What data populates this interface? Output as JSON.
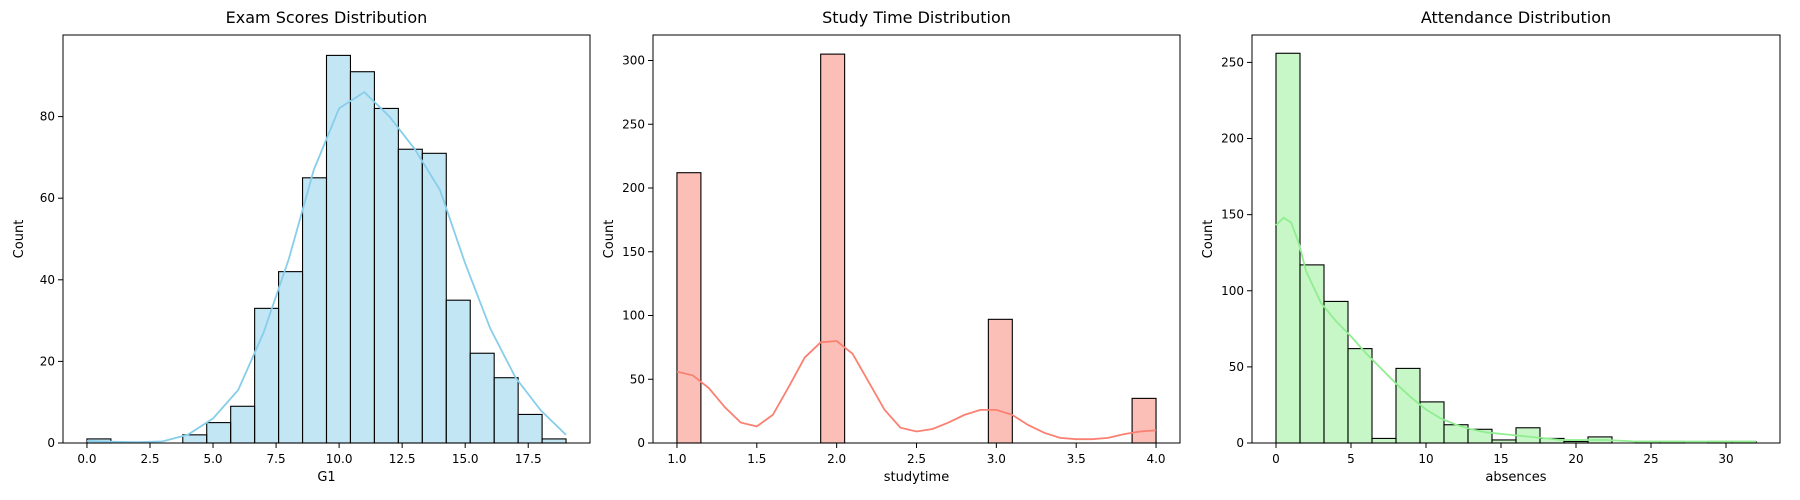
{
  "chart_data": [
    {
      "type": "histogram",
      "title": "Exam Scores Distribution",
      "xlabel": "G1",
      "ylabel": "Count",
      "xlim": [
        -0.95,
        19.95
      ],
      "ylim": [
        0,
        100
      ],
      "xticks": [
        0.0,
        2.5,
        5.0,
        7.5,
        10.0,
        12.5,
        15.0,
        17.5
      ],
      "xtick_labels": [
        "0.0",
        "2.5",
        "5.0",
        "7.5",
        "10.0",
        "12.5",
        "15.0",
        "17.5"
      ],
      "yticks": [
        0,
        20,
        40,
        60,
        80
      ],
      "ytick_labels": [
        "0",
        "20",
        "40",
        "60",
        "80"
      ],
      "bin_edges": [
        0,
        0.95,
        1.9,
        2.85,
        3.8,
        4.75,
        5.7,
        6.65,
        7.6,
        8.55,
        9.5,
        10.45,
        11.4,
        12.35,
        13.3,
        14.25,
        15.2,
        16.15,
        17.1,
        18.05,
        19.0
      ],
      "counts": [
        1,
        0,
        0,
        0,
        2,
        5,
        9,
        33,
        42,
        65,
        95,
        91,
        82,
        72,
        71,
        35,
        22,
        16,
        7,
        1
      ],
      "bar_color": "#87CEEB",
      "kde_color": "#87CEEB",
      "kde": {
        "x": [
          0,
          1,
          2,
          3,
          4,
          5,
          6,
          7,
          8,
          9,
          10,
          11,
          12,
          13,
          14,
          15,
          16,
          17,
          18,
          19
        ],
        "y": [
          0.5,
          0.3,
          0.2,
          0.4,
          2,
          6,
          13,
          27,
          45,
          67,
          82,
          86,
          80,
          72,
          62,
          44,
          28,
          16,
          8,
          2
        ]
      },
      "grid": false,
      "legend": "none"
    },
    {
      "type": "histogram",
      "title": "Study Time Distribution",
      "xlabel": "studytime",
      "ylabel": "Count",
      "xlim": [
        0.85,
        4.15
      ],
      "ylim": [
        0,
        320
      ],
      "xticks": [
        1.0,
        1.5,
        2.0,
        2.5,
        3.0,
        3.5,
        4.0
      ],
      "xtick_labels": [
        "1.0",
        "1.5",
        "2.0",
        "2.5",
        "3.0",
        "3.5",
        "4.0"
      ],
      "yticks": [
        0,
        50,
        100,
        150,
        200,
        250,
        300
      ],
      "ytick_labels": [
        "0",
        "50",
        "100",
        "150",
        "200",
        "250",
        "300"
      ],
      "bin_edges": [
        1.0,
        1.15,
        1.3,
        1.45,
        1.6,
        1.75,
        1.9,
        2.05,
        2.2,
        2.35,
        2.5,
        2.65,
        2.8,
        2.95,
        3.1,
        3.25,
        3.4,
        3.55,
        3.7,
        3.85,
        4.0
      ],
      "counts": [
        212,
        0,
        0,
        0,
        0,
        0,
        305,
        0,
        0,
        0,
        0,
        0,
        0,
        97,
        0,
        0,
        0,
        0,
        0,
        35
      ],
      "bar_color": "#FA8072",
      "kde_color": "#FA8072",
      "kde": {
        "x": [
          1.0,
          1.1,
          1.2,
          1.3,
          1.4,
          1.5,
          1.6,
          1.7,
          1.8,
          1.9,
          2.0,
          2.1,
          2.2,
          2.3,
          2.4,
          2.5,
          2.6,
          2.7,
          2.8,
          2.9,
          3.0,
          3.1,
          3.2,
          3.3,
          3.4,
          3.5,
          3.6,
          3.7,
          3.8,
          3.9,
          4.0
        ],
        "y": [
          56,
          53,
          43,
          28,
          16,
          13,
          22,
          44,
          67,
          79,
          80,
          70,
          48,
          26,
          12,
          9,
          11,
          16,
          22,
          26,
          26,
          22,
          14,
          8,
          4,
          3,
          3,
          4,
          7,
          9,
          10
        ]
      },
      "grid": false,
      "legend": "none"
    },
    {
      "type": "histogram",
      "title": "Attendance Distribution",
      "xlabel": "absences",
      "ylabel": "Count",
      "xlim": [
        -1.6,
        33.6
      ],
      "ylim": [
        0,
        268
      ],
      "xticks": [
        0,
        5,
        10,
        15,
        20,
        25,
        30
      ],
      "xtick_labels": [
        "0",
        "5",
        "10",
        "15",
        "20",
        "25",
        "30"
      ],
      "yticks": [
        0,
        50,
        100,
        150,
        200,
        250
      ],
      "ytick_labels": [
        "0",
        "50",
        "100",
        "150",
        "200",
        "250"
      ],
      "bin_edges": [
        0,
        1.6,
        3.2,
        4.8,
        6.4,
        8.0,
        9.6,
        11.2,
        12.8,
        14.4,
        16.0,
        17.6,
        19.2,
        20.8,
        22.4,
        24.0,
        25.6,
        27.2,
        28.8,
        30.4,
        32.0
      ],
      "counts": [
        256,
        117,
        93,
        62,
        3,
        49,
        27,
        12,
        9,
        2,
        10,
        3,
        1,
        4,
        0,
        1,
        1,
        0,
        1,
        1
      ],
      "bar_color": "#90EE90",
      "kde_color": "#90EE90",
      "kde": {
        "x": [
          0,
          0.5,
          1,
          1.5,
          2,
          3,
          4,
          5,
          6,
          7,
          8,
          9,
          10,
          11,
          12,
          13,
          14,
          15,
          16,
          17,
          18,
          19,
          20,
          22,
          24,
          26,
          28,
          30,
          32
        ],
        "y": [
          143,
          148,
          145,
          132,
          113,
          92,
          80,
          70,
          59,
          49,
          39,
          30,
          22,
          16,
          12,
          9,
          7,
          6,
          5,
          4,
          3,
          2,
          2,
          2,
          1,
          1,
          1,
          1,
          1
        ]
      },
      "grid": false,
      "legend": "none"
    }
  ]
}
